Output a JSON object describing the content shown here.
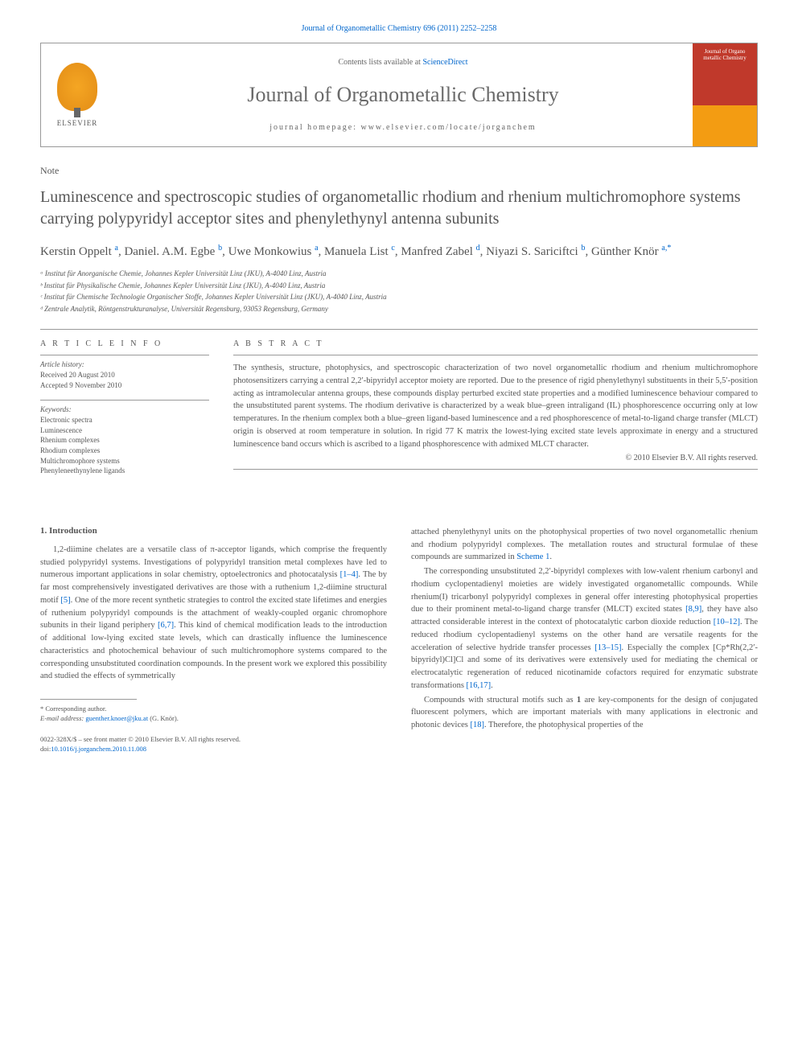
{
  "journal_ref": "Journal of Organometallic Chemistry 696 (2011) 2252–2258",
  "header": {
    "contents_prefix": "Contents lists available at ",
    "contents_link": "ScienceDirect",
    "journal_title": "Journal of Organometallic Chemistry",
    "homepage_prefix": "journal homepage: ",
    "homepage_url": "www.elsevier.com/locate/jorganchem",
    "elsevier_label": "ELSEVIER",
    "cover_text": "Journal of Organo metallic Chemistry"
  },
  "note_label": "Note",
  "title": "Luminescence and spectroscopic studies of organometallic rhodium and rhenium multichromophore systems carrying polypyridyl acceptor sites and phenylethynyl antenna subunits",
  "authors_html": "Kerstin Oppelt <sup class='sup-link'>a</sup>, Daniel. A.M. Egbe <sup class='sup-link'>b</sup>, Uwe Monkowius <sup class='sup-link'>a</sup>, Manuela List <sup class='sup-link'>c</sup>, Manfred Zabel <sup class='sup-link'>d</sup>, Niyazi S. Sariciftci <sup class='sup-link'>b</sup>, Günther Knör <sup class='sup-link'>a,*</sup>",
  "affiliations": [
    "ᵃ Institut für Anorganische Chemie, Johannes Kepler Universität Linz (JKU), A-4040 Linz, Austria",
    "ᵇ Institut für Physikalische Chemie, Johannes Kepler Universität Linz (JKU), A-4040 Linz, Austria",
    "ᶜ Institut für Chemische Technologie Organischer Stoffe, Johannes Kepler Universität Linz (JKU), A-4040 Linz, Austria",
    "ᵈ Zentrale Analytik, Röntgenstrukturanalyse, Universität Regensburg, 93053 Regensburg, Germany"
  ],
  "article_info": {
    "heading": "A R T I C L E   I N F O",
    "history_label": "Article history:",
    "received": "Received 20 August 2010",
    "accepted": "Accepted 9 November 2010",
    "keywords_label": "Keywords:",
    "keywords": [
      "Electronic spectra",
      "Luminescence",
      "Rhenium complexes",
      "Rhodium complexes",
      "Multichromophore systems",
      "Phenyleneethynylene ligands"
    ]
  },
  "abstract": {
    "heading": "A B S T R A C T",
    "text": "The synthesis, structure, photophysics, and spectroscopic characterization of two novel organometallic rhodium and rhenium multichromophore photosensitizers carrying a central 2,2′-bipyridyl acceptor moiety are reported. Due to the presence of rigid phenylethynyl substituents in their 5,5′-position acting as intramolecular antenna groups, these compounds display perturbed excited state properties and a modified luminescence behaviour compared to the unsubstituted parent systems. The rhodium derivative is characterized by a weak blue–green intraligand (IL) phosphorescence occurring only at low temperatures. In the rhenium complex both a blue–green ligand-based luminescence and a red phosphorescence of metal-to-ligand charge transfer (MLCT) origin is observed at room temperature in solution. In rigid 77 K matrix the lowest-lying excited state levels approximate in energy and a structured luminescence band occurs which is ascribed to a ligand phosphorescence with admixed MLCT character.",
    "copyright": "© 2010 Elsevier B.V. All rights reserved."
  },
  "body": {
    "section_heading": "1. Introduction",
    "col1_html": "<p>1,2-diimine chelates are a versatile class of π-acceptor ligands, which comprise the frequently studied polypyridyl systems. Investigations of polypyridyl transition metal complexes have led to numerous important applications in solar chemistry, optoelectronics and photocatalysis <span class='ref-link'>[1–4]</span>. The by far most comprehensively investigated derivatives are those with a ruthenium 1,2-diimine structural motif <span class='ref-link'>[5]</span>. One of the more recent synthetic strategies to control the excited state lifetimes and energies of ruthenium polypyridyl compounds is the attachment of weakly-coupled organic chromophore subunits in their ligand periphery <span class='ref-link'>[6,7]</span>. This kind of chemical modification leads to the introduction of additional low-lying excited state levels, which can drastically influence the luminescence characteristics and photochemical behaviour of such multichromophore systems compared to the corresponding unsubstituted coordination compounds. In the present work we explored this possibility and studied the effects of symmetrically</p>",
    "col2_html": "<p style='text-indent:0'>attached phenylethynyl units on the photophysical properties of two novel organometallic rhenium and rhodium polypyridyl complexes. The metallation routes and structural formulae of these compounds are summarized in <span class='ref-link'>Scheme 1</span>.</p><p>The corresponding unsubstituted 2,2′-bipyridyl complexes with low-valent rhenium carbonyl and rhodium cyclopentadienyl moieties are widely investigated organometallic compounds. While rhenium(I) tricarbonyl polypyridyl complexes in general offer interesting photophysical properties due to their prominent metal-to-ligand charge transfer (MLCT) excited states <span class='ref-link'>[8,9]</span>, they have also attracted considerable interest in the context of photocatalytic carbon dioxide reduction <span class='ref-link'>[10–12]</span>. The reduced rhodium cyclopentadienyl systems on the other hand are versatile reagents for the acceleration of selective hydride transfer processes <span class='ref-link'>[13–15]</span>. Especially the complex [Cp*Rh(2,2′-bipyridyl)Cl]Cl and some of its derivatives were extensively used for mediating the chemical or electrocatalytic regeneration of reduced nicotinamide cofactors required for enzymatic substrate transformations <span class='ref-link'>[16,17]</span>.</p><p>Compounds with structural motifs such as <b>1</b> are key-components for the design of conjugated fluorescent polymers, which are important materials with many applications in electronic and photonic devices <span class='ref-link'>[18]</span>. Therefore, the photophysical properties of the</p>"
  },
  "footnote": {
    "corresponding": "* Corresponding author.",
    "email_label": "E-mail address: ",
    "email": "guenther.knoer@jku.at",
    "email_author": " (G. Knör)."
  },
  "doi": {
    "line1": "0022-328X/$ – see front matter © 2010 Elsevier B.V. All rights reserved.",
    "line2_prefix": "doi:",
    "line2_link": "10.1016/j.jorganchem.2010.11.008"
  },
  "colors": {
    "link": "#0066cc",
    "text": "#555555",
    "border": "#999999",
    "elsevier_orange": "#f5a623",
    "cover_red": "#c0392b",
    "cover_orange": "#f39c12"
  }
}
